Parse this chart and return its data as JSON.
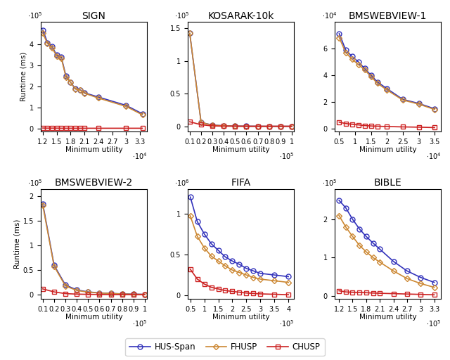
{
  "subplots": [
    {
      "title": "SIGN",
      "xlabel": "Minimum utility",
      "ylabel": "Runtime (ms)",
      "xscale_exp": 4,
      "yscale_exp": 5,
      "xlim": [
        11500,
        34500
      ],
      "ylim": [
        -15000,
        510000
      ],
      "xticks": [
        12000,
        15000,
        18000,
        21000,
        24000,
        27000,
        30000,
        33000
      ],
      "xtick_labels": [
        "1.2",
        "1.5",
        "1.8",
        "2.1",
        "2.4",
        "2.7",
        "3",
        "3.3"
      ],
      "yticks": [
        0,
        100000,
        200000,
        300000,
        400000
      ],
      "ytick_labels": [
        "0",
        "1",
        "2",
        "3",
        "4"
      ],
      "hus_x": [
        12000,
        13000,
        14000,
        15000,
        16000,
        17000,
        18000,
        19000,
        20000,
        21000,
        24000,
        30000,
        33500
      ],
      "hus_y": [
        470000,
        410000,
        390000,
        350000,
        340000,
        250000,
        220000,
        190000,
        185000,
        170000,
        150000,
        110000,
        70000
      ],
      "fhusp_x": [
        12000,
        13000,
        14000,
        15000,
        16000,
        17000,
        18000,
        19000,
        20000,
        21000,
        24000,
        30000,
        33500
      ],
      "fhusp_y": [
        455000,
        405000,
        385000,
        345000,
        335000,
        245000,
        220000,
        188000,
        183000,
        168000,
        145000,
        105000,
        65000
      ],
      "chusp_x": [
        12000,
        13000,
        14000,
        15000,
        16000,
        17000,
        18000,
        19000,
        20000,
        21000,
        24000,
        30000,
        33500
      ],
      "chusp_y": [
        2000,
        1500,
        1500,
        1500,
        1000,
        1000,
        1000,
        1000,
        1000,
        1000,
        1000,
        1000,
        1000
      ]
    },
    {
      "title": "KOSARAK-10k",
      "xlabel": "Minimum utility",
      "ylabel": "",
      "xscale_exp": 5,
      "yscale_exp": 5,
      "xlim": [
        8000,
        102000
      ],
      "ylim": [
        -8000,
        160000
      ],
      "xticks": [
        10000,
        20000,
        30000,
        40000,
        50000,
        60000,
        70000,
        80000,
        90000,
        100000
      ],
      "xtick_labels": [
        "0.1",
        "0.2",
        "0.3",
        "0.4",
        "0.5",
        "0.6",
        "0.7",
        "0.8",
        "0.9",
        "1"
      ],
      "yticks": [
        0,
        50000,
        100000,
        150000
      ],
      "ytick_labels": [
        "0",
        "0.5",
        "1",
        "1.5"
      ],
      "hus_x": [
        10000,
        20000,
        30000,
        40000,
        50000,
        60000,
        70000,
        80000,
        90000,
        100000
      ],
      "hus_y": [
        142000,
        6000,
        2000,
        1000,
        500,
        300,
        200,
        100,
        100,
        100
      ],
      "fhusp_x": [
        10000,
        20000,
        30000,
        40000,
        50000,
        60000,
        70000,
        80000,
        90000,
        100000
      ],
      "fhusp_y": [
        142000,
        5800,
        1800,
        800,
        400,
        200,
        100,
        100,
        100,
        100
      ],
      "chusp_x": [
        10000,
        20000,
        30000,
        40000,
        50000,
        60000,
        70000,
        80000,
        90000,
        100000
      ],
      "chusp_y": [
        7000,
        2500,
        700,
        300,
        200,
        100,
        100,
        100,
        100,
        100
      ]
    },
    {
      "title": "BMSWEBVIEW-1",
      "xlabel": "Minimum utility",
      "ylabel": "",
      "xscale_exp": 4,
      "yscale_exp": 4,
      "xlim": [
        3500,
        37000
      ],
      "ylim": [
        -2000,
        80000
      ],
      "xticks": [
        5000,
        10000,
        15000,
        20000,
        25000,
        30000,
        35000
      ],
      "xtick_labels": [
        "0.5",
        "1",
        "1.5",
        "2",
        "2.5",
        "3",
        "3.5"
      ],
      "yticks": [
        0,
        20000,
        40000,
        60000
      ],
      "ytick_labels": [
        "0",
        "2",
        "4",
        "6"
      ],
      "hus_x": [
        5000,
        7000,
        9000,
        11000,
        13000,
        15000,
        17000,
        20000,
        25000,
        30000,
        35000
      ],
      "hus_y": [
        71000,
        59000,
        54000,
        50000,
        45000,
        40000,
        35000,
        30000,
        22000,
        19000,
        15000
      ],
      "fhusp_x": [
        5000,
        7000,
        9000,
        11000,
        13000,
        15000,
        17000,
        20000,
        25000,
        30000,
        35000
      ],
      "fhusp_y": [
        68000,
        57000,
        52000,
        48000,
        44000,
        39000,
        34000,
        29000,
        21500,
        18500,
        14500
      ],
      "chusp_x": [
        5000,
        7000,
        9000,
        11000,
        13000,
        15000,
        17000,
        20000,
        25000,
        30000,
        35000
      ],
      "chusp_y": [
        5000,
        4000,
        3500,
        3000,
        2500,
        2200,
        2000,
        1800,
        1500,
        1300,
        1000
      ]
    },
    {
      "title": "BMSWEBVIEW-2",
      "xlabel": "Minimum utility",
      "ylabel": "Runtime (ms)",
      "xscale_exp": 5,
      "yscale_exp": 5,
      "xlim": [
        8000,
        102000
      ],
      "ylim": [
        -8000,
        215000
      ],
      "xticks": [
        10000,
        20000,
        30000,
        40000,
        50000,
        60000,
        70000,
        80000,
        90000,
        100000
      ],
      "xtick_labels": [
        "0.1",
        "0.2",
        "0.3",
        "0.4",
        "0.5",
        "0.6",
        "0.7",
        "0.8",
        "0.9",
        "1"
      ],
      "yticks": [
        0,
        50000,
        100000,
        150000,
        200000
      ],
      "ytick_labels": [
        "0",
        "0.5",
        "1",
        "1.5",
        "2"
      ],
      "hus_x": [
        10000,
        20000,
        30000,
        40000,
        50000,
        60000,
        70000,
        80000,
        90000,
        100000
      ],
      "hus_y": [
        185000,
        60000,
        20000,
        10000,
        6000,
        4000,
        3000,
        2000,
        1500,
        1000
      ],
      "fhusp_x": [
        10000,
        20000,
        30000,
        40000,
        50000,
        60000,
        70000,
        80000,
        90000,
        100000
      ],
      "fhusp_y": [
        182000,
        58000,
        18000,
        9000,
        5500,
        3800,
        2800,
        1800,
        1300,
        900
      ],
      "chusp_x": [
        10000,
        20000,
        30000,
        40000,
        50000,
        60000,
        70000,
        80000,
        90000,
        100000
      ],
      "chusp_y": [
        12000,
        6000,
        2500,
        1500,
        1000,
        800,
        600,
        500,
        400,
        300
      ]
    },
    {
      "title": "FIFA",
      "xlabel": "Minimum utility",
      "ylabel": "",
      "xscale_exp": 5,
      "yscale_exp": 6,
      "xlim": [
        40000,
        420000
      ],
      "ylim": [
        -40000,
        1300000
      ],
      "xticks": [
        50000,
        100000,
        150000,
        200000,
        250000,
        300000,
        350000,
        400000
      ],
      "xtick_labels": [
        "0.5",
        "1",
        "1.5",
        "2",
        "2.5",
        "3",
        "3.5",
        "4"
      ],
      "yticks": [
        0,
        500000,
        1000000
      ],
      "ytick_labels": [
        "0",
        "0.5",
        "1"
      ],
      "hus_x": [
        50000,
        75000,
        100000,
        125000,
        150000,
        175000,
        200000,
        225000,
        250000,
        275000,
        300000,
        350000,
        400000
      ],
      "hus_y": [
        1200000,
        900000,
        750000,
        630000,
        550000,
        470000,
        420000,
        380000,
        330000,
        300000,
        270000,
        250000,
        230000
      ],
      "fhusp_x": [
        50000,
        75000,
        100000,
        125000,
        150000,
        175000,
        200000,
        225000,
        250000,
        275000,
        300000,
        350000,
        400000
      ],
      "fhusp_y": [
        970000,
        720000,
        580000,
        480000,
        420000,
        360000,
        310000,
        280000,
        250000,
        220000,
        200000,
        180000,
        160000
      ],
      "chusp_x": [
        50000,
        75000,
        100000,
        125000,
        150000,
        175000,
        200000,
        225000,
        250000,
        275000,
        300000,
        350000,
        400000
      ],
      "chusp_y": [
        320000,
        200000,
        140000,
        100000,
        80000,
        60000,
        50000,
        40000,
        30000,
        25000,
        20000,
        15000,
        10000
      ]
    },
    {
      "title": "BIBLE",
      "xlabel": "Minimum utility",
      "ylabel": "",
      "xscale_exp": 5,
      "yscale_exp": 5,
      "xlim": [
        110000,
        345000
      ],
      "ylim": [
        -8000,
        280000
      ],
      "xticks": [
        120000,
        150000,
        180000,
        210000,
        240000,
        270000,
        300000,
        330000
      ],
      "xtick_labels": [
        "1.2",
        "1.5",
        "1.8",
        "2.1",
        "2.4",
        "2.7",
        "3",
        "3.3"
      ],
      "yticks": [
        0,
        100000,
        200000
      ],
      "ytick_labels": [
        "0",
        "1",
        "2"
      ],
      "hus_x": [
        120000,
        135000,
        150000,
        165000,
        180000,
        195000,
        210000,
        240000,
        270000,
        300000,
        330000
      ],
      "hus_y": [
        250000,
        230000,
        200000,
        175000,
        155000,
        138000,
        122000,
        90000,
        65000,
        48000,
        35000
      ],
      "fhusp_x": [
        120000,
        135000,
        150000,
        165000,
        180000,
        195000,
        210000,
        240000,
        270000,
        300000,
        330000
      ],
      "fhusp_y": [
        210000,
        180000,
        155000,
        132000,
        115000,
        100000,
        88000,
        65000,
        45000,
        32000,
        22000
      ],
      "chusp_x": [
        120000,
        135000,
        150000,
        165000,
        180000,
        195000,
        210000,
        240000,
        270000,
        300000,
        330000
      ],
      "chusp_y": [
        13000,
        10000,
        9000,
        8500,
        8000,
        7000,
        6500,
        5500,
        4500,
        3500,
        2500
      ]
    }
  ],
  "hus_color": "#3333BB",
  "fhusp_color": "#CC8833",
  "chusp_color": "#CC2222",
  "hus_label": "HUS-Span",
  "fhusp_label": "FHUSP",
  "chusp_label": "CHUSP",
  "marker_hus": "o",
  "marker_fhusp": "D",
  "marker_chusp": "s",
  "markersize_hus": 5,
  "markersize_fhusp": 4,
  "markersize_chusp": 5,
  "linewidth": 1.2,
  "legend_fontsize": 8.5,
  "tick_fontsize": 7,
  "label_fontsize": 7.5,
  "title_fontsize": 10
}
